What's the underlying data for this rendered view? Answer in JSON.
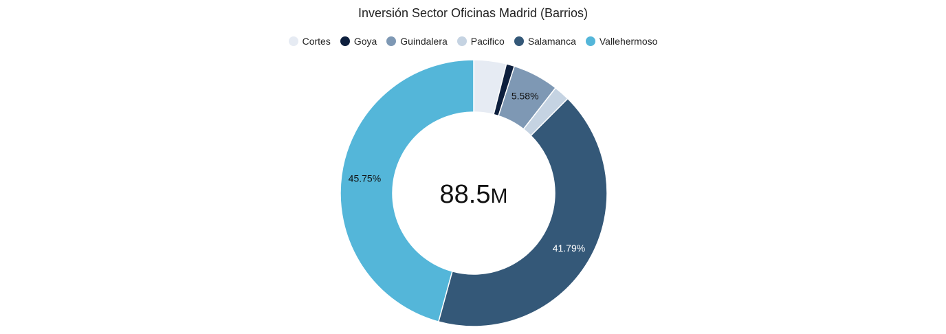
{
  "chart_data": {
    "type": "pie",
    "title": "Inversión Sector Oficinas Madrid (Barrios)",
    "center_label": "88.5",
    "center_unit": "M",
    "legend_position": "top",
    "series": [
      {
        "name": "Cortes",
        "percent": 3.95,
        "label": "",
        "color": "#e6ebf3",
        "label_color": "#222222"
      },
      {
        "name": "Goya",
        "percent": 0.99,
        "label": "",
        "color": "#0d1f3d",
        "label_color": "#ffffff"
      },
      {
        "name": "Guindalera",
        "percent": 5.58,
        "label": "5.58%",
        "color": "#7e98b4",
        "label_color": "#111111"
      },
      {
        "name": "Pacifico",
        "percent": 1.94,
        "label": "",
        "color": "#c5d3e2",
        "label_color": "#222222"
      },
      {
        "name": "Salamanca",
        "percent": 41.79,
        "label": "41.79%",
        "color": "#345878",
        "label_color": "#ffffff"
      },
      {
        "name": "Vallehermoso",
        "percent": 45.75,
        "label": "45.75%",
        "color": "#54b6d9",
        "label_color": "#111111"
      }
    ]
  }
}
